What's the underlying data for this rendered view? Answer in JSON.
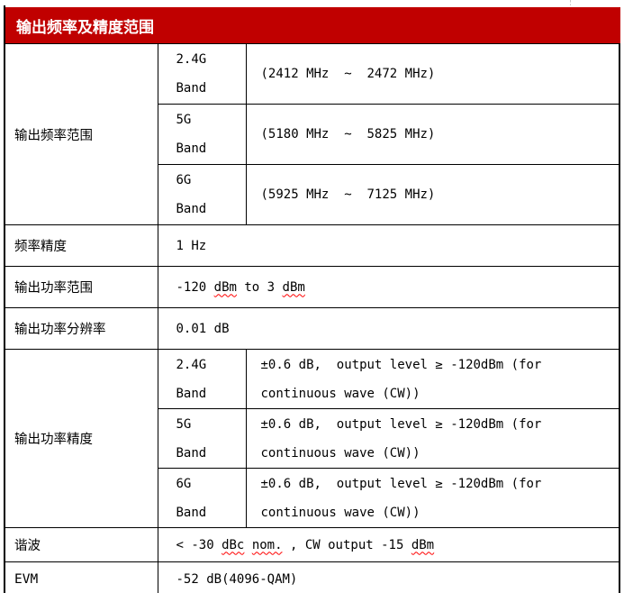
{
  "title_bar": {
    "title": "输出频率及精度范围"
  },
  "colors": {
    "header_bg": "#C00000",
    "header_text": "#FFFFFF",
    "border": "#000000",
    "gridline_dashed": "#BFBFBF",
    "spellcheck_underline": "#FF0000"
  },
  "freq_range": {
    "label": "输出频率范围",
    "bands": [
      {
        "band": "2.4G\nBand",
        "value": "(2412 MHz  ~  2472 MHz)"
      },
      {
        "band": "5G\nBand",
        "value": "(5180 MHz  ~  5825 MHz)"
      },
      {
        "band": "6G\nBand",
        "value": "(5925 MHz  ~  7125 MHz)"
      }
    ]
  },
  "freq_accuracy": {
    "label": "频率精度",
    "value": "1 Hz"
  },
  "power_range": {
    "label": "输出功率范围",
    "parts": [
      {
        "t": "-120 ",
        "w": false
      },
      {
        "t": "dBm",
        "w": true
      },
      {
        "t": " to 3 ",
        "w": false
      },
      {
        "t": "dBm",
        "w": true
      }
    ]
  },
  "power_resolution": {
    "label": "输出功率分辨率",
    "value": "0.01 dB"
  },
  "power_accuracy": {
    "label": "输出功率精度",
    "bands": [
      {
        "band": "2.4G\nBand",
        "value": "±0.6 dB,  output level ≥ -120dBm (for\ncontinuous wave (CW))"
      },
      {
        "band": "5G\nBand",
        "value": "±0.6 dB,  output level ≥ -120dBm (for\ncontinuous wave (CW))"
      },
      {
        "band": "6G\nBand",
        "value": "±0.6 dB,  output level ≥ -120dBm (for\ncontinuous wave (CW))"
      }
    ]
  },
  "harmonics": {
    "label": "谐波",
    "parts": [
      {
        "t": "< -30 ",
        "w": false
      },
      {
        "t": "dBc",
        "w": true
      },
      {
        "t": " ",
        "w": false
      },
      {
        "t": "nom.",
        "w": true
      },
      {
        "t": " , CW output -15 ",
        "w": false
      },
      {
        "t": "dBm",
        "w": true
      }
    ]
  },
  "evm": {
    "label": "EVM",
    "value": "-52 dB(4096-QAM)"
  }
}
